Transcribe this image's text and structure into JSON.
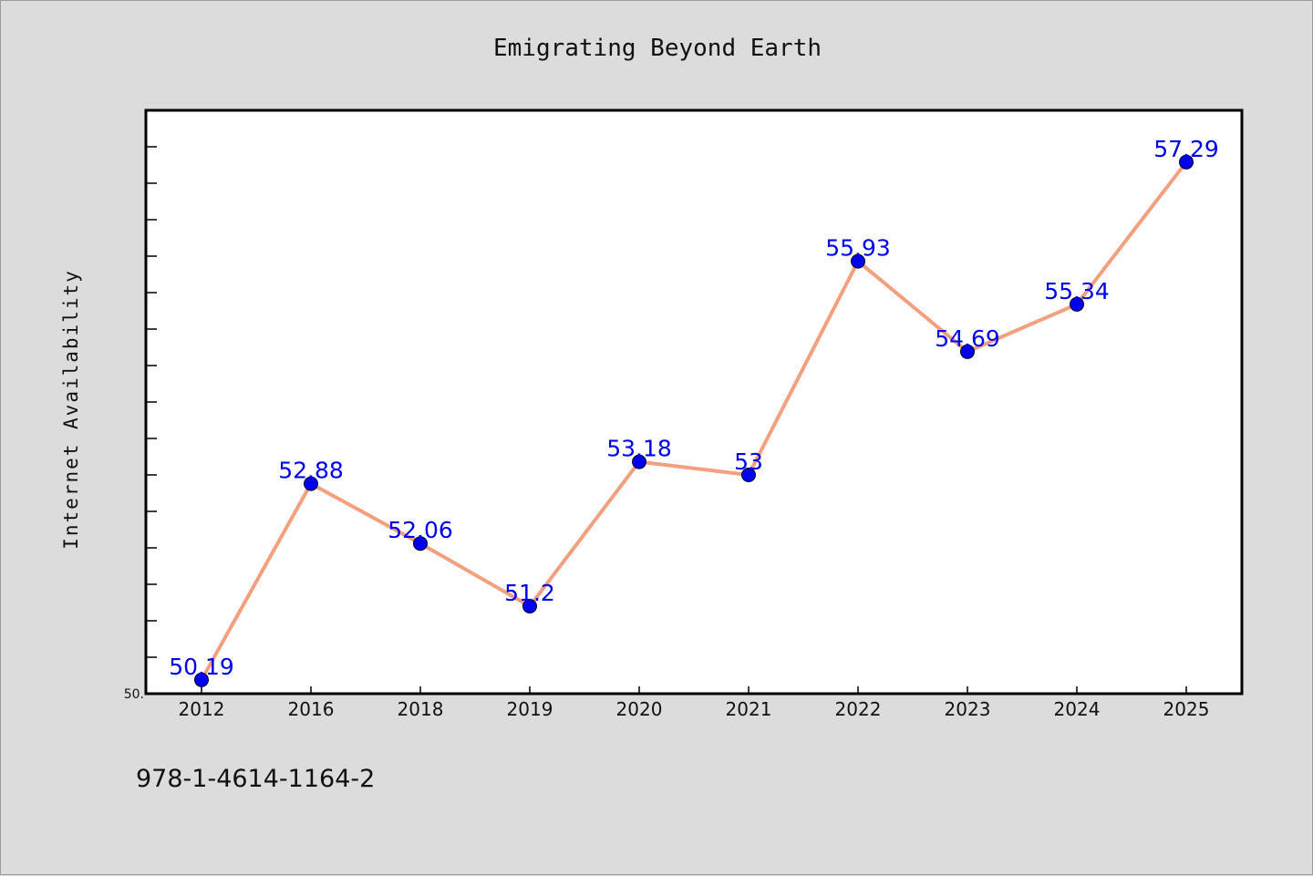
{
  "chart_data": {
    "type": "line",
    "title": "Emigrating Beyond Earth",
    "xlabel": "",
    "ylabel": "Internet Availability",
    "categories": [
      "2012",
      "2016",
      "2018",
      "2019",
      "2020",
      "2021",
      "2022",
      "2023",
      "2024",
      "2025"
    ],
    "series": [
      {
        "values": [
          50.19,
          52.88,
          52.06,
          51.2,
          53.18,
          53,
          55.93,
          54.69,
          55.34,
          57.29
        ],
        "labels": [
          "50.19",
          "52.88",
          "52.06",
          "51.2",
          "53.18",
          "53",
          "55.93",
          "54.69",
          "55.34",
          "57.29"
        ],
        "line_color": "#f4a07e",
        "marker_color": "#0000ee"
      }
    ],
    "ylim": [
      50,
      58
    ],
    "ytick_label": "50.",
    "grid": false,
    "legend": "none"
  },
  "footer": {
    "text": "978-1-4614-1164-2"
  },
  "colors": {
    "background": "#dcdcdc",
    "plot_area": "#ffffff",
    "label_color": "#0000ee"
  }
}
